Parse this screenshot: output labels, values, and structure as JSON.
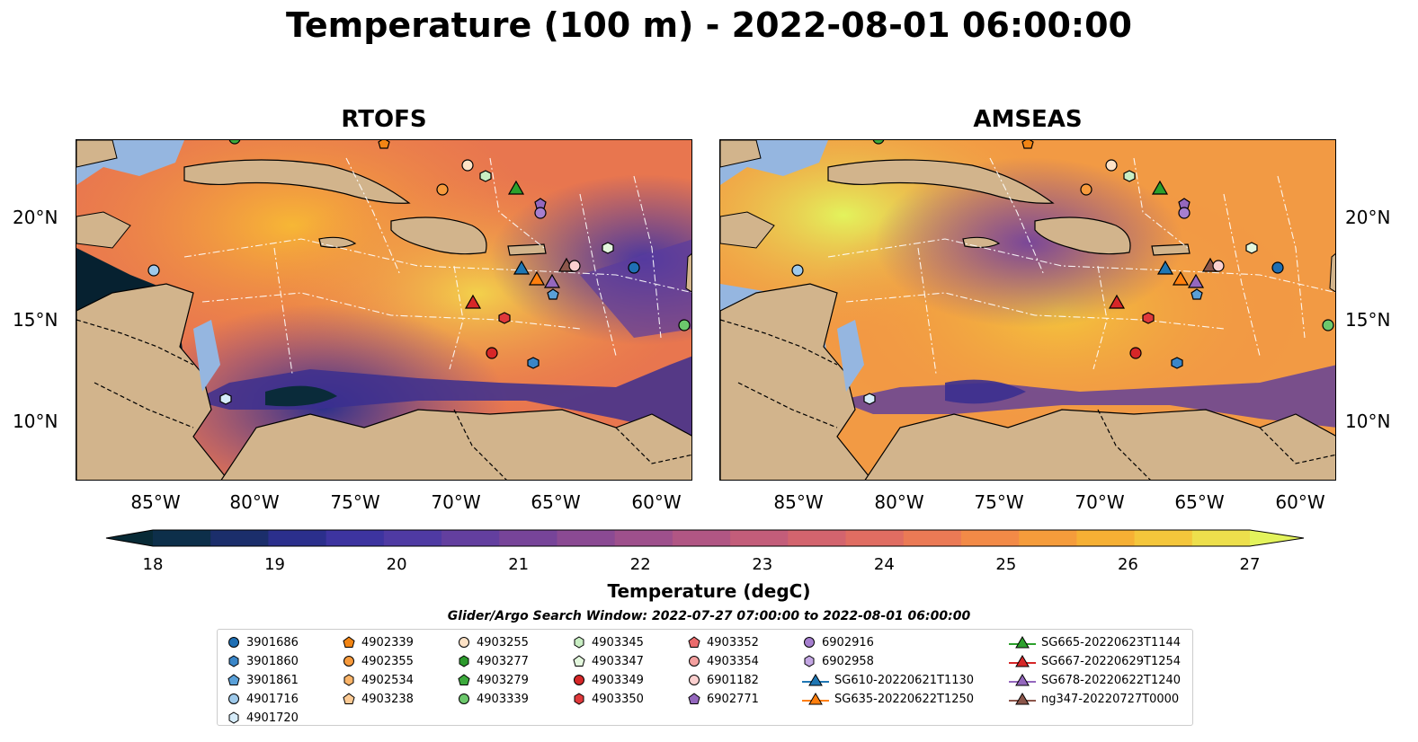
{
  "title": "Temperature (100 m) - 2022-08-01 06:00:00",
  "panels": [
    {
      "name": "RTOFS"
    },
    {
      "name": "AMSEAS"
    }
  ],
  "lat_labels": [
    "20°N",
    "15°N",
    "10°N"
  ],
  "lon_labels": [
    "85°W",
    "80°W",
    "75°W",
    "70°W",
    "65°W",
    "60°W"
  ],
  "colorbar": {
    "label": "Temperature (degC)",
    "ticks": [
      "18",
      "19",
      "20",
      "21",
      "22",
      "23",
      "24",
      "25",
      "26",
      "27"
    ],
    "colors": [
      "#082a36",
      "#0d2f4a",
      "#1b2e6b",
      "#2b2f8c",
      "#3d34a0",
      "#4f3aa3",
      "#633f9f",
      "#774499",
      "#8b4a93",
      "#9e508c",
      "#b15684",
      "#c35d7a",
      "#d3646e",
      "#e06d62",
      "#eb7a55",
      "#f28a47",
      "#f59c3b",
      "#f6b034",
      "#f4c63b",
      "#eddf4c",
      "#e3f35c"
    ]
  },
  "legend": {
    "title": "Glider/Argo Search Window: 2022-07-27 07:00:00 to 2022-08-01 06:00:00",
    "items": [
      {
        "label": "3901686",
        "marker": "circle",
        "color": "#1f6fb4"
      },
      {
        "label": "3901860",
        "marker": "hexagon",
        "color": "#3a86c8"
      },
      {
        "label": "3901861",
        "marker": "pentagon",
        "color": "#5aa0d8"
      },
      {
        "label": "4901716",
        "marker": "circle",
        "color": "#9ec9ea"
      },
      {
        "label": "4901720",
        "marker": "hexagon",
        "color": "#d6ecfa"
      },
      {
        "label": "4902339",
        "marker": "pentagon",
        "color": "#f28514"
      },
      {
        "label": "4902355",
        "marker": "circle",
        "color": "#f79a3c"
      },
      {
        "label": "4902534",
        "marker": "hexagon",
        "color": "#fbb468"
      },
      {
        "label": "4903238",
        "marker": "pentagon",
        "color": "#fcca94"
      },
      {
        "label": "4903255",
        "marker": "circle",
        "color": "#fde2c6"
      },
      {
        "label": "4903345",
        "marker": "hexagon",
        "color": "#c9eec3"
      },
      {
        "label": "4903277",
        "marker": "hexagon",
        "color": "#2d9a2d"
      },
      {
        "label": "4903279",
        "marker": "pentagon",
        "color": "#3daa3d"
      },
      {
        "label": "4903339",
        "marker": "circle",
        "color": "#6cc86c"
      },
      {
        "label": "4903347",
        "marker": "pentagon",
        "color": "#e3f7dd"
      },
      {
        "label": "4903349",
        "marker": "circle",
        "color": "#d62728"
      },
      {
        "label": "4903350",
        "marker": "hexagon",
        "color": "#e0393b"
      },
      {
        "label": "4903352",
        "marker": "pentagon",
        "color": "#ea6b6c"
      },
      {
        "label": "4903354",
        "marker": "circle",
        "color": "#f4a09f"
      },
      {
        "label": "6901182",
        "marker": "circle",
        "color": "#fbd0cf"
      },
      {
        "label": "6902771",
        "marker": "pentagon",
        "color": "#9467bd"
      },
      {
        "label": "6902916",
        "marker": "circle",
        "color": "#a67fcf"
      },
      {
        "label": "6902958",
        "marker": "hexagon",
        "color": "#c3a6e3"
      },
      {
        "label": "SG610-20220621T1130",
        "marker": "triangle-line",
        "color": "#1f77b4"
      },
      {
        "label": "SG635-20220622T1250",
        "marker": "triangle-line",
        "color": "#ff7f0e"
      },
      {
        "label": "SG665-20220623T1144",
        "marker": "triangle-line",
        "color": "#2ca02c"
      },
      {
        "label": "SG667-20220629T1254",
        "marker": "triangle-line",
        "color": "#d62728"
      },
      {
        "label": "SG678-20220622T1240",
        "marker": "triangle-line",
        "color": "#9467bd"
      },
      {
        "label": "ng347-20220727T0000",
        "marker": "triangle-line",
        "color": "#8c564b"
      }
    ]
  },
  "colors": {
    "land": "#d2b48c",
    "ocean_outside": "#95b6e0",
    "low_temp": "#082a36"
  }
}
